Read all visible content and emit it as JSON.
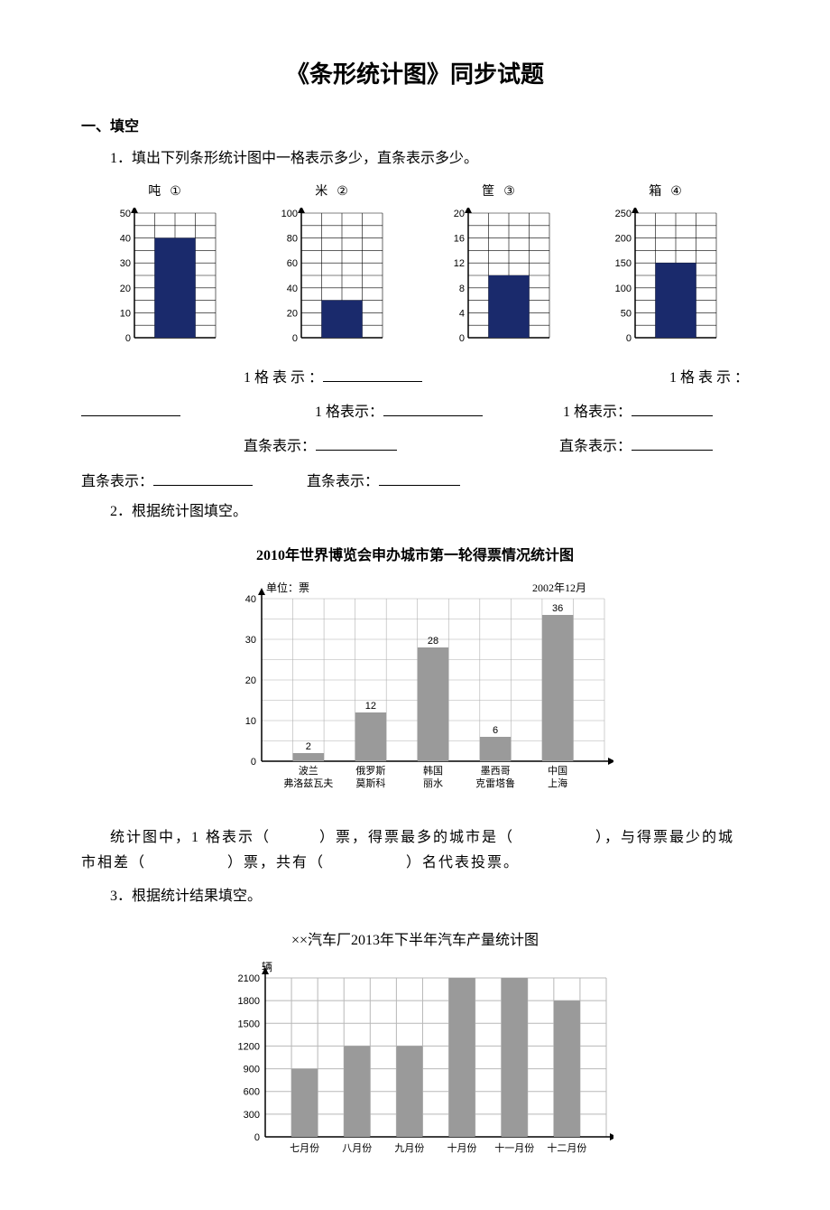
{
  "page": {
    "title": "《条形统计图》同步试题",
    "section1_heading": "一、填空",
    "q1_text": "1．填出下列条形统计图中一格表示多少，直条表示多少。",
    "charts": {
      "c1": {
        "type": "bar",
        "unit": "吨",
        "marker": "①",
        "ylim": [
          0,
          50
        ],
        "ytick_step": 10,
        "value": 40,
        "bar_color": "#1a2a6c",
        "grid_color": "#000000",
        "background_color": "#ffffff"
      },
      "c2": {
        "type": "bar",
        "unit": "米",
        "marker": "②",
        "ylim": [
          0,
          100
        ],
        "ytick_step": 20,
        "value": 30,
        "bar_color": "#1a2a6c",
        "grid_color": "#000000",
        "background_color": "#ffffff"
      },
      "c3": {
        "type": "bar",
        "unit": "筐",
        "marker": "③",
        "ylim": [
          0,
          20
        ],
        "ytick_step": 4,
        "value": 10,
        "bar_color": "#1a2a6c",
        "grid_color": "#000000",
        "background_color": "#ffffff"
      },
      "c4": {
        "type": "bar",
        "unit": "箱",
        "marker": "④",
        "ylim": [
          0,
          250
        ],
        "ytick_step": 50,
        "value": 150,
        "bar_color": "#1a2a6c",
        "grid_color": "#000000",
        "background_color": "#ffffff"
      }
    },
    "q1_lines": {
      "l1a": "1 格 表 示 ：",
      "l1b": "1 格 表 示 ：",
      "l2a": "1 格表示：",
      "l2b": "1 格表示：",
      "l3a": "直条表示：",
      "l3b": "直条表示：",
      "l4a": "直条表示：",
      "l4b": "直条表示："
    },
    "q2_text": "2．根据统计图填空。",
    "chart2": {
      "type": "bar",
      "title": "2010年世界博览会申办城市第一轮得票情况统计图",
      "unit_label": "单位：票",
      "date_label": "2002年12月",
      "categories_line1": [
        "波兰",
        "俄罗斯",
        "韩国",
        "墨西哥",
        "中国"
      ],
      "categories_line2": [
        "弗洛兹瓦夫",
        "莫斯科",
        "丽水",
        "克雷塔鲁",
        "上海"
      ],
      "values": [
        2,
        12,
        28,
        6,
        36
      ],
      "ylim": [
        0,
        40
      ],
      "ytick_step": 10,
      "bar_color": "#9a9a9a",
      "grid_color": "#b0b0b0",
      "axis_color": "#000000",
      "background_color": "#ffffff",
      "label_fontsize": 11
    },
    "q2_fill": "统计图中，1 格表示（　　　）票，得票最多的城市是（　　　　　），与得票最少的城市相差（　　　　　）票，共有（　　　　　）名代表投票。",
    "q3_text": "3．根据统计结果填空。",
    "chart3": {
      "type": "bar",
      "title": "××汽车厂2013年下半年汽车产量统计图",
      "unit_label": "辆",
      "categories": [
        "七月份",
        "八月份",
        "九月份",
        "十月份",
        "十一月份",
        "十二月份"
      ],
      "values": [
        900,
        1200,
        1200,
        2100,
        2100,
        1800
      ],
      "ylim": [
        0,
        2100
      ],
      "ytick_step": 300,
      "bar_color": "#9a9a9a",
      "grid_color": "#b8b8b8",
      "axis_color": "#000000",
      "background_color": "#ffffff",
      "label_fontsize": 11
    }
  }
}
